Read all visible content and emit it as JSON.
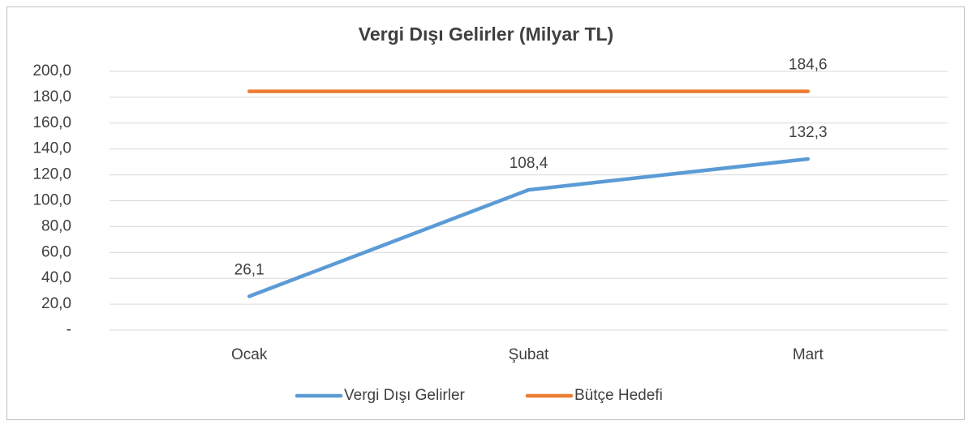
{
  "chart_data": {
    "type": "line",
    "title": "Vergi Dışı Gelirler (Milyar TL)",
    "categories": [
      "Ocak",
      "Şubat",
      "Mart"
    ],
    "series": [
      {
        "name": "Vergi Dışı Gelirler",
        "color": "#5b9bd5",
        "values": [
          26.1,
          108.4,
          132.3
        ],
        "value_labels": [
          "26,1",
          "108,4",
          "132,3"
        ]
      },
      {
        "name": "Bütçe Hedefi",
        "color": "#ed7d31",
        "values": [
          184.6,
          184.6,
          184.6
        ],
        "value_labels": [
          null,
          null,
          "184,6"
        ]
      }
    ],
    "ylim": [
      0,
      200
    ],
    "yticks": [
      {
        "value": 0,
        "label": "-"
      },
      {
        "value": 20,
        "label": "20,0"
      },
      {
        "value": 40,
        "label": "40,0"
      },
      {
        "value": 60,
        "label": "60,0"
      },
      {
        "value": 80,
        "label": "80,0"
      },
      {
        "value": 100,
        "label": "100,0"
      },
      {
        "value": 120,
        "label": "120,0"
      },
      {
        "value": 140,
        "label": "140,0"
      },
      {
        "value": 160,
        "label": "160,0"
      },
      {
        "value": 180,
        "label": "180,0"
      },
      {
        "value": 200,
        "label": "200,0"
      }
    ],
    "grid": true,
    "legend": "bottom"
  }
}
